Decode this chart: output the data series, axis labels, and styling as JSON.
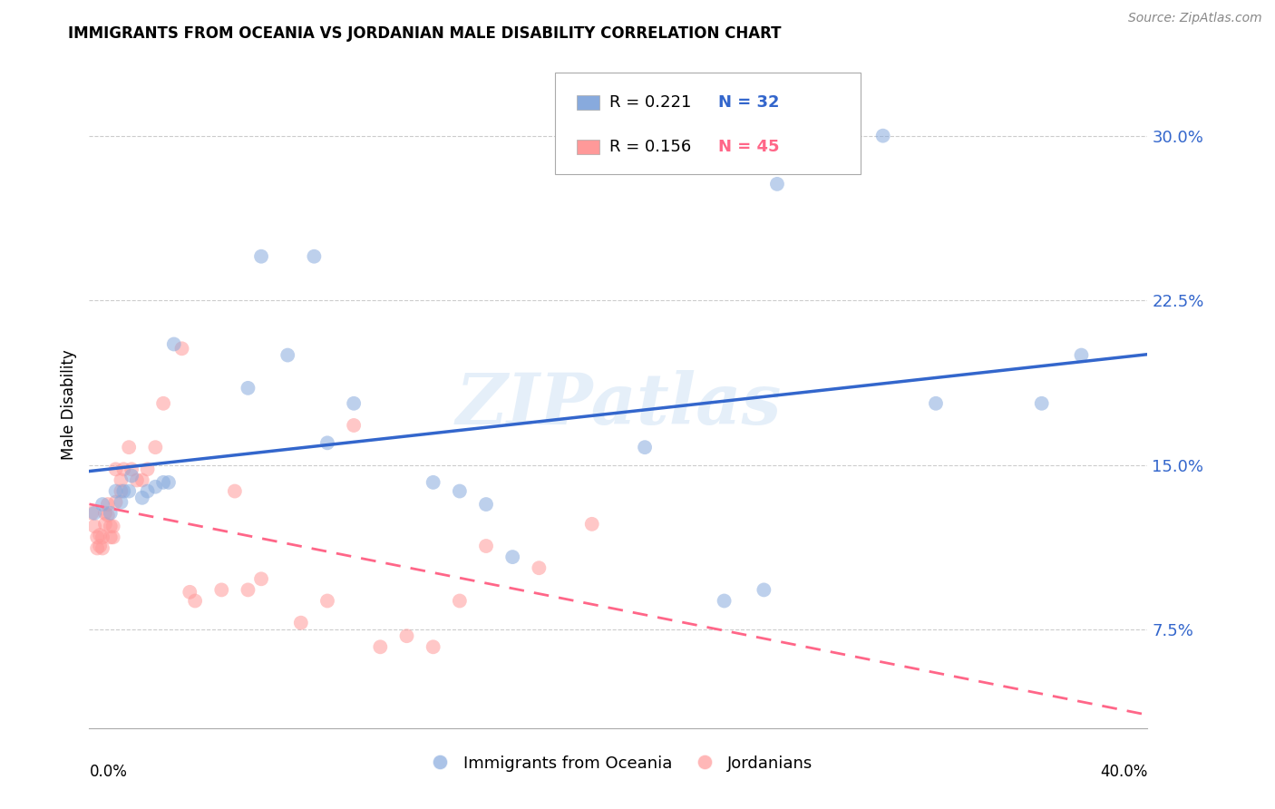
{
  "title": "IMMIGRANTS FROM OCEANIA VS JORDANIAN MALE DISABILITY CORRELATION CHART",
  "source": "Source: ZipAtlas.com",
  "ylabel": "Male Disability",
  "y_ticks": [
    0.075,
    0.15,
    0.225,
    0.3
  ],
  "y_tick_labels": [
    "7.5%",
    "15.0%",
    "22.5%",
    "30.0%"
  ],
  "x_min": 0.0,
  "x_max": 0.4,
  "y_min": 0.03,
  "y_max": 0.325,
  "legend_r1": "R = 0.221",
  "legend_n1": "N = 32",
  "legend_r2": "R = 0.156",
  "legend_n2": "N = 45",
  "label1": "Immigrants from Oceania",
  "label2": "Jordanians",
  "color1": "#88AADD",
  "color2": "#FF9999",
  "trendline1_color": "#3366CC",
  "trendline2_color": "#FF6688",
  "watermark": "ZIPatlas",
  "blue_scatter_x": [
    0.002,
    0.005,
    0.008,
    0.01,
    0.012,
    0.013,
    0.015,
    0.016,
    0.02,
    0.022,
    0.025,
    0.028,
    0.03,
    0.032,
    0.06,
    0.065,
    0.075,
    0.085,
    0.09,
    0.1,
    0.13,
    0.14,
    0.15,
    0.16,
    0.21,
    0.24,
    0.255,
    0.26,
    0.3,
    0.32,
    0.36,
    0.375
  ],
  "blue_scatter_y": [
    0.128,
    0.132,
    0.128,
    0.138,
    0.133,
    0.138,
    0.138,
    0.145,
    0.135,
    0.138,
    0.14,
    0.142,
    0.142,
    0.205,
    0.185,
    0.245,
    0.2,
    0.245,
    0.16,
    0.178,
    0.142,
    0.138,
    0.132,
    0.108,
    0.158,
    0.088,
    0.093,
    0.278,
    0.3,
    0.178,
    0.178,
    0.2
  ],
  "pink_scatter_x": [
    0.001,
    0.002,
    0.003,
    0.003,
    0.004,
    0.004,
    0.005,
    0.005,
    0.006,
    0.006,
    0.007,
    0.007,
    0.008,
    0.008,
    0.009,
    0.009,
    0.01,
    0.01,
    0.012,
    0.012,
    0.013,
    0.015,
    0.016,
    0.018,
    0.02,
    0.022,
    0.025,
    0.028,
    0.035,
    0.038,
    0.04,
    0.05,
    0.055,
    0.06,
    0.065,
    0.08,
    0.09,
    0.1,
    0.11,
    0.12,
    0.13,
    0.14,
    0.15,
    0.17,
    0.19
  ],
  "pink_scatter_y": [
    0.128,
    0.122,
    0.117,
    0.112,
    0.113,
    0.118,
    0.112,
    0.117,
    0.128,
    0.123,
    0.132,
    0.127,
    0.117,
    0.122,
    0.122,
    0.117,
    0.133,
    0.148,
    0.138,
    0.143,
    0.148,
    0.158,
    0.148,
    0.143,
    0.143,
    0.148,
    0.158,
    0.178,
    0.203,
    0.092,
    0.088,
    0.093,
    0.138,
    0.093,
    0.098,
    0.078,
    0.088,
    0.168,
    0.067,
    0.072,
    0.067,
    0.088,
    0.113,
    0.103,
    0.123
  ]
}
